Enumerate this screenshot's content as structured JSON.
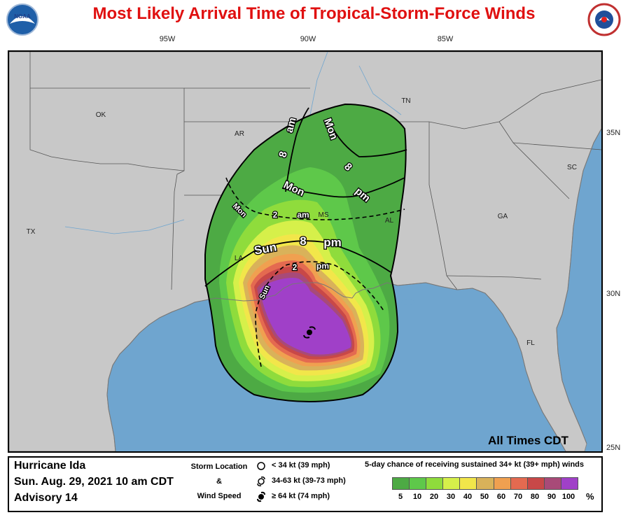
{
  "title": "Most Likely Arrival Time of Tropical-Storm-Force Winds",
  "logos": {
    "left": "NOAA",
    "right": "NATIONAL WEATHER SERVICE"
  },
  "longitudes": [
    "95W",
    "90W",
    "85W"
  ],
  "latitudes": [
    "35N",
    "30N",
    "25N"
  ],
  "states": [
    "OK",
    "AR",
    "TN",
    "SC",
    "TX",
    "MS",
    "AL",
    "GA",
    "LA",
    "FL"
  ],
  "arrival_labels": {
    "mon_8am_a": "8",
    "mon_8am_b": "am",
    "mon_8am_c": "Mon",
    "mon_8pm_a": "Mon",
    "mon_8pm_b": "8",
    "mon_8pm_c": "pm",
    "mon_2am_a": "Mon",
    "mon_2am_b": "2",
    "mon_2am_c": "am",
    "sun_8pm_a": "Sun",
    "sun_8pm_b": "8",
    "sun_8pm_c": "pm",
    "sun_2pm_a": "Sun",
    "sun_2pm_b": "2",
    "sun_2pm_c": "pm"
  },
  "map_note": "All Times CDT",
  "storm_info": {
    "name": "Hurricane Ida",
    "date": "Sun. Aug. 29, 2021   10 am CDT",
    "advisory": "Advisory 14"
  },
  "storm_legend": {
    "location": "Storm Location",
    "amp": "&",
    "wind_speed": "Wind Speed",
    "sym_lt34": "< 34 kt (39 mph)",
    "sym_34_63": "34-63 kt (39-73 mph)",
    "sym_ge64": "≥ 64 kt (74 mph)"
  },
  "probability": {
    "title": "5-day chance of receiving sustained 34+ kt (39+ mph) winds",
    "ticks": [
      "5",
      "10",
      "20",
      "30",
      "40",
      "50",
      "60",
      "70",
      "80",
      "90",
      "100"
    ],
    "percent": "%",
    "colors": [
      "#4daa44",
      "#5ec84a",
      "#8fdc3c",
      "#d6f04a",
      "#f2e64a",
      "#d9b25a",
      "#f0a050",
      "#e46a50",
      "#c84848",
      "#a84a78",
      "#a040c8"
    ]
  },
  "colors": {
    "title": "#e01010",
    "land": "#c8c8c8",
    "water": "#6fa5cf",
    "storm_center": "#000000"
  },
  "icons": [
    "noaa-logo",
    "nws-logo",
    "hurricane-symbol-icon",
    "storm-open-circle-icon",
    "storm-tropical-icon",
    "storm-hurricane-icon"
  ]
}
